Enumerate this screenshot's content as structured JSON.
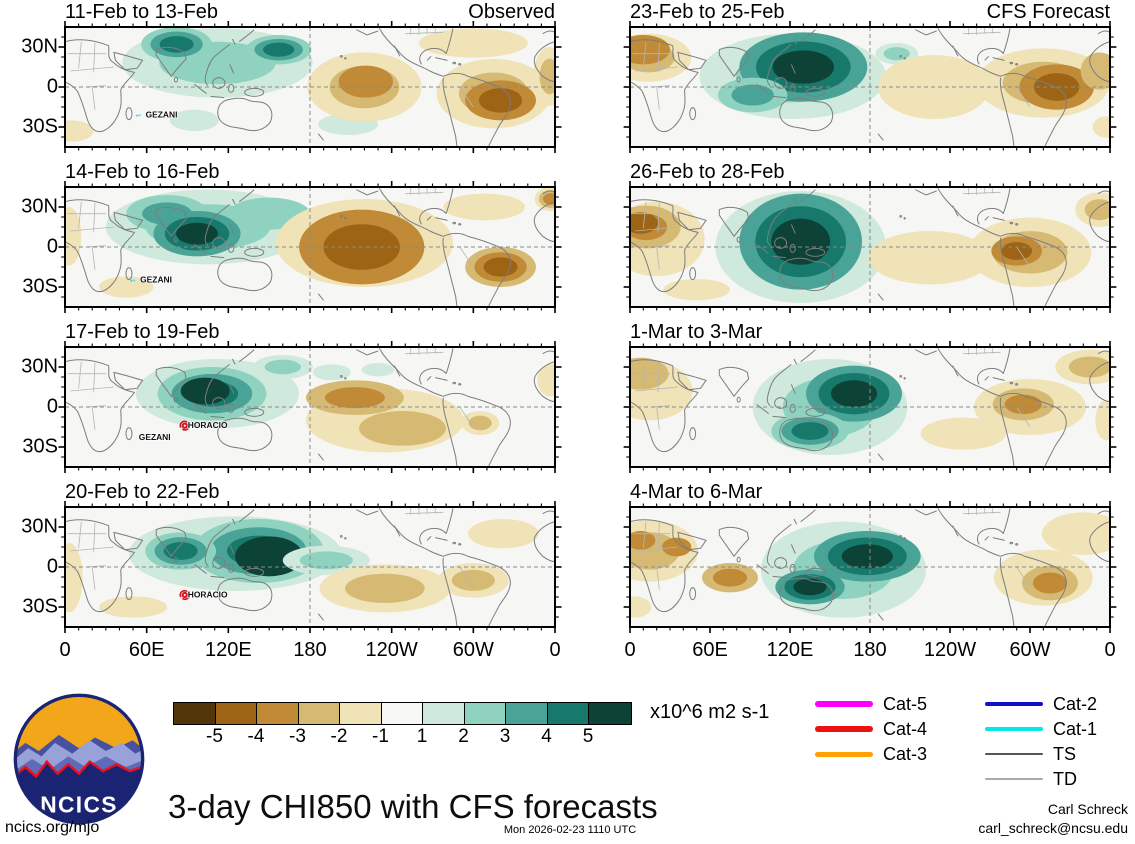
{
  "branding": {
    "logo_text": "NCICS",
    "url": "ncics.org/mjo",
    "main_title": "3-day CHI850 with CFS forecasts",
    "timestamp": "Mon 2026-02-23 1110 UTC",
    "credit_name": "Carl Schreck",
    "credit_email": "carl_schreck@ncsu.edu"
  },
  "axes": {
    "y_labels": [
      "30N",
      "0",
      "30S"
    ],
    "x_labels": [
      "0",
      "60E",
      "120E",
      "180",
      "120W",
      "60W",
      "0"
    ],
    "x_lons": [
      0,
      60,
      120,
      180,
      240,
      300,
      360
    ]
  },
  "colorbar": {
    "units": "x10^6 m2 s-1",
    "tick_labels": [
      "-5",
      "-4",
      "-3",
      "-2",
      "-1",
      "1",
      "2",
      "3",
      "4",
      "5"
    ],
    "colors": [
      "#53350a",
      "#9c6414",
      "#c08a36",
      "#d6ba74",
      "#f0e3b8",
      "#f8f8f7",
      "#cfe9dd",
      "#8fd2bf",
      "#49a497",
      "#17796b",
      "#0d4236"
    ],
    "map_background": "#f6f6f4"
  },
  "storm_legend": {
    "items": [
      {
        "label": "Cat-5",
        "color": "#ff00ff",
        "weight": 6,
        "column": 1
      },
      {
        "label": "Cat-4",
        "color": "#ee1111",
        "weight": 5.5,
        "column": 1
      },
      {
        "label": "Cat-3",
        "color": "#ffa200",
        "weight": 5,
        "column": 1
      },
      {
        "label": "Cat-2",
        "color": "#1111cc",
        "weight": 4,
        "column": 2
      },
      {
        "label": "Cat-1",
        "color": "#00e8e8",
        "weight": 3.5,
        "column": 2
      },
      {
        "label": "TS",
        "color": "#555555",
        "weight": 2.5,
        "column": 2
      },
      {
        "label": "TD",
        "color": "#aaaaaa",
        "weight": 1.2,
        "column": 2
      }
    ]
  },
  "chart_data": {
    "type": "heatmap",
    "subtype": "filled-contour velocity-potential anomaly world maps, 4x2 grid",
    "lon_range": [
      0,
      360
    ],
    "lat_range": [
      -45,
      45
    ],
    "units": "x10^6 m2 s-1",
    "levels": [
      -5,
      -4,
      -3,
      -2,
      -1,
      1,
      2,
      3,
      4,
      5
    ],
    "feature_format": [
      "lon_deg",
      "lat_deg",
      "rx_deg",
      "ry_deg",
      "signed_peak_value",
      "base_level"
    ],
    "panels": [
      {
        "title": "11-Feb to 13-Feb",
        "tag": "Observed",
        "storms": [
          {
            "name": "GEZANI",
            "lon": 57,
            "lat": -21,
            "marker": "track"
          }
        ],
        "features": [
          [
            112,
            18,
            70,
            26,
            2,
            1
          ],
          [
            82,
            32,
            26,
            13,
            4,
            2
          ],
          [
            157,
            28,
            24,
            11,
            4,
            2
          ],
          [
            95,
            -25,
            18,
            8,
            1,
            1
          ],
          [
            208,
            -28,
            22,
            8,
            1,
            1
          ],
          [
            220,
            0,
            42,
            26,
            -2,
            1
          ],
          [
            221,
            4,
            20,
            12,
            -3,
            3
          ],
          [
            315,
            -5,
            42,
            26,
            -2,
            1
          ],
          [
            320,
            -10,
            26,
            15,
            -4,
            3
          ],
          [
            300,
            33,
            40,
            11,
            -1,
            1
          ],
          [
            356,
            8,
            12,
            22,
            -2,
            1
          ],
          [
            5,
            -33,
            16,
            8,
            -1,
            1
          ]
        ]
      },
      {
        "title": "14-Feb to 16-Feb",
        "tag": "",
        "storms": [
          {
            "name": "GEZANI",
            "lon": 53,
            "lat": -25,
            "marker": "track"
          }
        ],
        "features": [
          [
            105,
            15,
            75,
            28,
            2,
            1
          ],
          [
            75,
            25,
            30,
            14,
            3,
            2
          ],
          [
            150,
            25,
            30,
            12,
            2,
            2
          ],
          [
            97,
            10,
            32,
            17,
            5,
            3
          ],
          [
            220,
            3,
            65,
            33,
            -2,
            1
          ],
          [
            218,
            0,
            46,
            28,
            -4,
            3
          ],
          [
            320,
            -15,
            26,
            15,
            -4,
            2
          ],
          [
            308,
            30,
            30,
            10,
            -1,
            1
          ],
          [
            357,
            36,
            12,
            9,
            -3,
            1
          ],
          [
            3,
            8,
            9,
            22,
            -1,
            1
          ],
          [
            45,
            -30,
            20,
            8,
            -1,
            1
          ]
        ]
      },
      {
        "title": "17-Feb to 19-Feb",
        "tag": "",
        "storms": [
          {
            "name": "HORACIO",
            "lon": 88,
            "lat": -14,
            "marker": "swirl"
          },
          {
            "name": "GEZANI",
            "lon": 52,
            "lat": -23,
            "marker": "none"
          }
        ],
        "features": [
          [
            112,
            10,
            60,
            26,
            1,
            1
          ],
          [
            108,
            10,
            40,
            20,
            4,
            2
          ],
          [
            103,
            12,
            18,
            10,
            5,
            5
          ],
          [
            160,
            30,
            22,
            9,
            2,
            1
          ],
          [
            196,
            26,
            14,
            6,
            1,
            1
          ],
          [
            230,
            28,
            12,
            5,
            1,
            1
          ],
          [
            235,
            -10,
            58,
            24,
            -1,
            1
          ],
          [
            248,
            -16,
            32,
            13,
            -2,
            2
          ],
          [
            213,
            7,
            36,
            13,
            -3,
            2
          ],
          [
            305,
            -12,
            14,
            9,
            -2,
            1
          ],
          [
            357,
            20,
            10,
            12,
            -1,
            1
          ]
        ]
      },
      {
        "title": "20-Feb to 22-Feb",
        "tag": "",
        "storms": [
          {
            "name": "HORACIO",
            "lon": 88,
            "lat": -21,
            "marker": "swirl"
          }
        ],
        "features": [
          [
            125,
            10,
            78,
            28,
            1,
            1
          ],
          [
            142,
            12,
            48,
            24,
            4,
            2
          ],
          [
            85,
            12,
            26,
            14,
            4,
            2
          ],
          [
            150,
            8,
            25,
            15,
            5,
            5
          ],
          [
            192,
            5,
            32,
            11,
            2,
            1
          ],
          [
            235,
            -16,
            48,
            18,
            -2,
            1
          ],
          [
            300,
            -10,
            26,
            13,
            -2,
            1
          ],
          [
            3,
            -8,
            10,
            26,
            -1,
            1
          ],
          [
            322,
            25,
            26,
            11,
            -1,
            1
          ],
          [
            50,
            -30,
            25,
            8,
            -1,
            1
          ]
        ]
      },
      {
        "title": "23-Feb to 25-Feb",
        "tag": "CFS Forecast",
        "storms": [],
        "features": [
          [
            122,
            8,
            70,
            32,
            2,
            1
          ],
          [
            130,
            15,
            48,
            26,
            5,
            3
          ],
          [
            92,
            -6,
            26,
            13,
            3,
            2
          ],
          [
            200,
            25,
            16,
            8,
            2,
            1
          ],
          [
            228,
            0,
            42,
            24,
            -1,
            1
          ],
          [
            14,
            22,
            32,
            18,
            -2,
            1
          ],
          [
            10,
            28,
            20,
            11,
            -3,
            3
          ],
          [
            310,
            3,
            50,
            26,
            -2,
            1
          ],
          [
            320,
            0,
            28,
            17,
            -4,
            3
          ],
          [
            352,
            12,
            14,
            14,
            -2,
            2
          ],
          [
            357,
            -30,
            10,
            8,
            -1,
            1
          ]
        ]
      },
      {
        "title": "26-Feb to 28-Feb",
        "tag": "",
        "storms": [],
        "features": [
          [
            128,
            0,
            64,
            42,
            2,
            1
          ],
          [
            128,
            4,
            46,
            36,
            5,
            3
          ],
          [
            20,
            6,
            36,
            28,
            -1,
            1
          ],
          [
            12,
            15,
            26,
            16,
            -3,
            2
          ],
          [
            8,
            18,
            13,
            8,
            -4,
            4
          ],
          [
            300,
            -4,
            46,
            26,
            -2,
            1
          ],
          [
            290,
            -3,
            19,
            11,
            -4,
            3
          ],
          [
            352,
            28,
            18,
            13,
            -2,
            1
          ],
          [
            225,
            -8,
            46,
            20,
            -1,
            1
          ],
          [
            50,
            -32,
            25,
            8,
            -1,
            1
          ]
        ]
      },
      {
        "title": "1-Mar to 3-Mar",
        "tag": "",
        "storms": [],
        "features": [
          [
            150,
            0,
            58,
            36,
            2,
            1
          ],
          [
            168,
            10,
            36,
            21,
            5,
            3
          ],
          [
            135,
            -18,
            29,
            14,
            4,
            2
          ],
          [
            15,
            12,
            32,
            22,
            -1,
            1
          ],
          [
            8,
            25,
            21,
            12,
            -2,
            2
          ],
          [
            300,
            0,
            42,
            21,
            -1,
            1
          ],
          [
            295,
            2,
            23,
            12,
            -3,
            2
          ],
          [
            345,
            30,
            26,
            13,
            -2,
            1
          ],
          [
            250,
            -20,
            32,
            12,
            -1,
            1
          ],
          [
            357,
            -10,
            8,
            15,
            -1,
            1
          ]
        ]
      },
      {
        "title": "4-Mar to 6-Mar",
        "tag": "",
        "storms": [],
        "features": [
          [
            160,
            -2,
            62,
            36,
            2,
            1
          ],
          [
            178,
            8,
            40,
            19,
            5,
            3
          ],
          [
            135,
            -15,
            26,
            13,
            5,
            3
          ],
          [
            15,
            12,
            36,
            23,
            -2,
            1
          ],
          [
            8,
            20,
            11,
            7,
            -3,
            3
          ],
          [
            35,
            15,
            11,
            7,
            -3,
            3
          ],
          [
            75,
            -8,
            21,
            11,
            -3,
            2
          ],
          [
            310,
            -8,
            37,
            21,
            -1,
            1
          ],
          [
            315,
            -12,
            21,
            13,
            -3,
            2
          ],
          [
            340,
            25,
            31,
            16,
            -1,
            1
          ],
          [
            3,
            -30,
            13,
            8,
            -1,
            1
          ]
        ]
      }
    ]
  }
}
